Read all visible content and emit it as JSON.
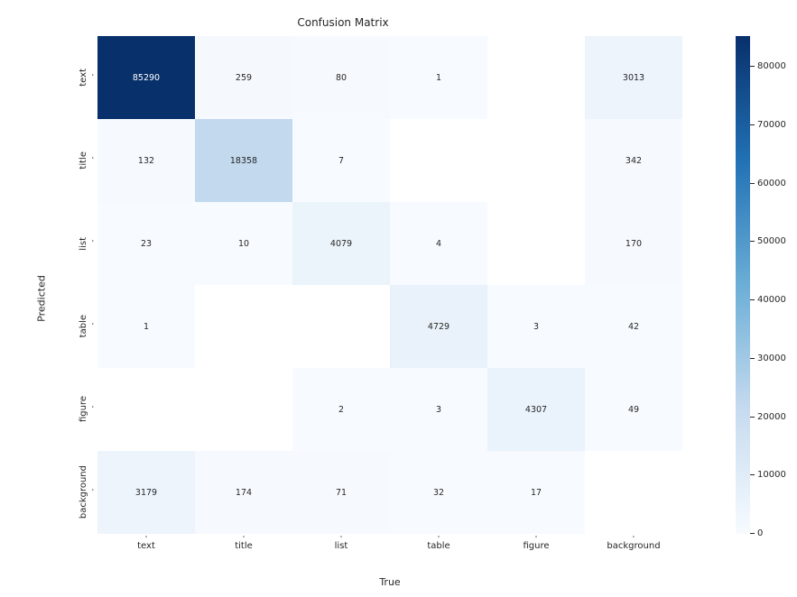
{
  "chart": {
    "type": "heatmap",
    "title": "Confusion Matrix",
    "title_fontsize": 12,
    "xlabel": "True",
    "ylabel": "Predicted",
    "label_fontsize": 11,
    "row_labels": [
      "text",
      "title",
      "list",
      "table",
      "figure",
      "background"
    ],
    "col_labels": [
      "text",
      "title",
      "list",
      "table",
      "figure",
      "background"
    ],
    "tick_fontsize": 10,
    "cell_fontsize": 9.5,
    "data": [
      [
        85290,
        259,
        80,
        1,
        null,
        3013
      ],
      [
        132,
        18358,
        7,
        null,
        null,
        342
      ],
      [
        23,
        10,
        4079,
        4,
        null,
        170
      ],
      [
        1,
        null,
        null,
        4729,
        3,
        42
      ],
      [
        null,
        null,
        2,
        3,
        4307,
        49
      ],
      [
        3179,
        174,
        71,
        32,
        17,
        null
      ]
    ],
    "cell_colors": [
      [
        "#08306b",
        "#f5f9fe",
        "#f6fafe",
        "#f7fbff",
        "#ffffff",
        "#edf4fc"
      ],
      [
        "#f6fafe",
        "#c2d9ee",
        "#f7fbff",
        "#ffffff",
        "#ffffff",
        "#f6fafe"
      ],
      [
        "#f7fbff",
        "#f7fbff",
        "#ebf3fb",
        "#f7fbff",
        "#ffffff",
        "#f6fafe"
      ],
      [
        "#f7fbff",
        "#ffffff",
        "#ffffff",
        "#e9f2fa",
        "#f7fbff",
        "#f7fbff"
      ],
      [
        "#ffffff",
        "#ffffff",
        "#f7fbff",
        "#f7fbff",
        "#eaf2fb",
        "#f7fbff"
      ],
      [
        "#edf4fc",
        "#f6fafe",
        "#f6fafe",
        "#f7fbff",
        "#f7fbff",
        "#ffffff"
      ]
    ],
    "cell_text_colors": [
      [
        "#ffffff",
        "#262626",
        "#262626",
        "#262626",
        "#262626",
        "#262626"
      ],
      [
        "#262626",
        "#262626",
        "#262626",
        "#262626",
        "#262626",
        "#262626"
      ],
      [
        "#262626",
        "#262626",
        "#262626",
        "#262626",
        "#262626",
        "#262626"
      ],
      [
        "#262626",
        "#262626",
        "#262626",
        "#262626",
        "#262626",
        "#262626"
      ],
      [
        "#262626",
        "#262626",
        "#262626",
        "#262626",
        "#262626",
        "#262626"
      ],
      [
        "#262626",
        "#262626",
        "#262626",
        "#262626",
        "#262626",
        "#262626"
      ]
    ],
    "background_color": "#ffffff",
    "colorbar": {
      "gradient_top_color": "#08306b",
      "gradient_bottom_color": "#f7fbff",
      "vmin": 0,
      "vmax": 85290,
      "ticks": [
        0,
        10000,
        20000,
        30000,
        40000,
        50000,
        60000,
        70000,
        80000
      ]
    }
  }
}
